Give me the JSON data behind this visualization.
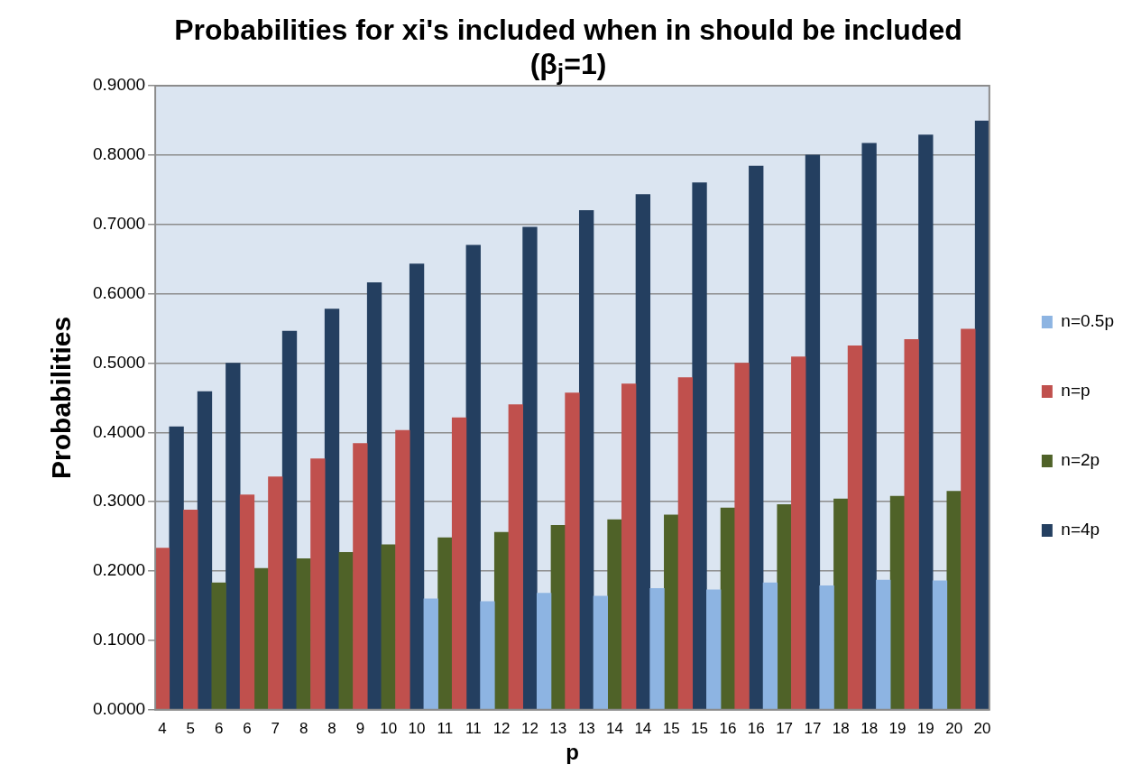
{
  "chart_data": {
    "type": "bar",
    "title": "Probabilities for xi's included when in should be included (β$_{j}$=1)",
    "xlabel": "p",
    "ylabel": "Probabilities",
    "categories": [
      "4",
      null,
      "5",
      null,
      "6",
      null,
      "6",
      null,
      "7",
      null,
      "8",
      null,
      "8",
      null,
      "9",
      null,
      "10",
      null,
      "10",
      null,
      "11",
      null,
      "11",
      null,
      "12",
      null,
      "12",
      null,
      "13",
      null,
      "13",
      null,
      "14",
      null,
      "14",
      null,
      "15",
      null,
      "15",
      null,
      "16",
      null,
      "16",
      null,
      "17",
      null,
      "17",
      null,
      "18",
      null,
      "18",
      null,
      "19",
      null,
      "19",
      null,
      "20",
      null,
      "20"
    ],
    "series": [
      {
        "name": "n=0.5p",
        "color": "#8db4e2",
        "values": [
          null,
          null,
          null,
          null,
          null,
          null,
          null,
          null,
          null,
          null,
          null,
          null,
          null,
          null,
          null,
          null,
          null,
          null,
          null,
          0.16,
          null,
          null,
          null,
          0.156,
          null,
          null,
          null,
          0.168,
          null,
          null,
          null,
          0.164,
          null,
          null,
          null,
          0.175,
          null,
          null,
          null,
          0.173,
          null,
          null,
          null,
          0.183,
          null,
          null,
          null,
          0.179,
          null,
          null,
          null,
          0.187,
          null,
          null,
          null,
          0.186,
          null,
          null,
          null
        ]
      },
      {
        "name": "n=p",
        "color": "#c0504d",
        "values": [
          0.233,
          null,
          0.288,
          null,
          null,
          null,
          0.31,
          null,
          0.336,
          null,
          null,
          0.362,
          null,
          null,
          0.384,
          null,
          null,
          0.403,
          null,
          null,
          null,
          0.421,
          null,
          null,
          null,
          0.44,
          null,
          null,
          null,
          0.457,
          null,
          null,
          null,
          0.47,
          null,
          null,
          null,
          0.479,
          null,
          null,
          null,
          0.5,
          null,
          null,
          null,
          0.509,
          null,
          null,
          null,
          0.525,
          null,
          null,
          null,
          0.534,
          null,
          null,
          null,
          0.549,
          null
        ]
      },
      {
        "name": "n=2p",
        "color": "#4f6228",
        "values": [
          null,
          null,
          null,
          null,
          0.183,
          null,
          null,
          0.204,
          null,
          null,
          0.218,
          null,
          null,
          0.227,
          null,
          null,
          0.238,
          null,
          null,
          null,
          0.248,
          null,
          null,
          null,
          0.256,
          null,
          null,
          null,
          0.266,
          null,
          null,
          null,
          0.274,
          null,
          null,
          null,
          0.281,
          null,
          null,
          null,
          0.291,
          null,
          null,
          null,
          0.296,
          null,
          null,
          null,
          0.304,
          null,
          null,
          null,
          0.308,
          null,
          null,
          null,
          0.315,
          null,
          null
        ]
      },
      {
        "name": "n=4p",
        "color": "#243f60",
        "values": [
          null,
          0.408,
          null,
          0.459,
          null,
          0.5,
          null,
          null,
          null,
          0.546,
          null,
          null,
          0.578,
          null,
          null,
          0.616,
          null,
          null,
          0.643,
          null,
          null,
          null,
          0.67,
          null,
          null,
          null,
          0.696,
          null,
          null,
          null,
          0.72,
          null,
          null,
          null,
          0.743,
          null,
          null,
          null,
          0.76,
          null,
          null,
          null,
          0.784,
          null,
          null,
          null,
          0.8,
          null,
          null,
          null,
          0.817,
          null,
          null,
          null,
          0.829,
          null,
          null,
          null,
          0.849
        ]
      }
    ],
    "ylim": [
      0,
      0.9
    ],
    "yticks": [
      {
        "value": 0,
        "label": "0.0000"
      },
      {
        "value": 0.1,
        "label": "0.1000"
      },
      {
        "value": 0.2,
        "label": "0.2000"
      },
      {
        "value": 0.3,
        "label": "0.3000"
      },
      {
        "value": 0.4,
        "label": "0.4000"
      },
      {
        "value": 0.5,
        "label": "0.5000"
      },
      {
        "value": 0.6,
        "label": "0.6000"
      },
      {
        "value": 0.7,
        "label": "0.7000"
      },
      {
        "value": 0.8,
        "label": "0.8000"
      },
      {
        "value": 0.9,
        "label": "0.9000"
      }
    ],
    "grid": "y",
    "legend": "right"
  }
}
